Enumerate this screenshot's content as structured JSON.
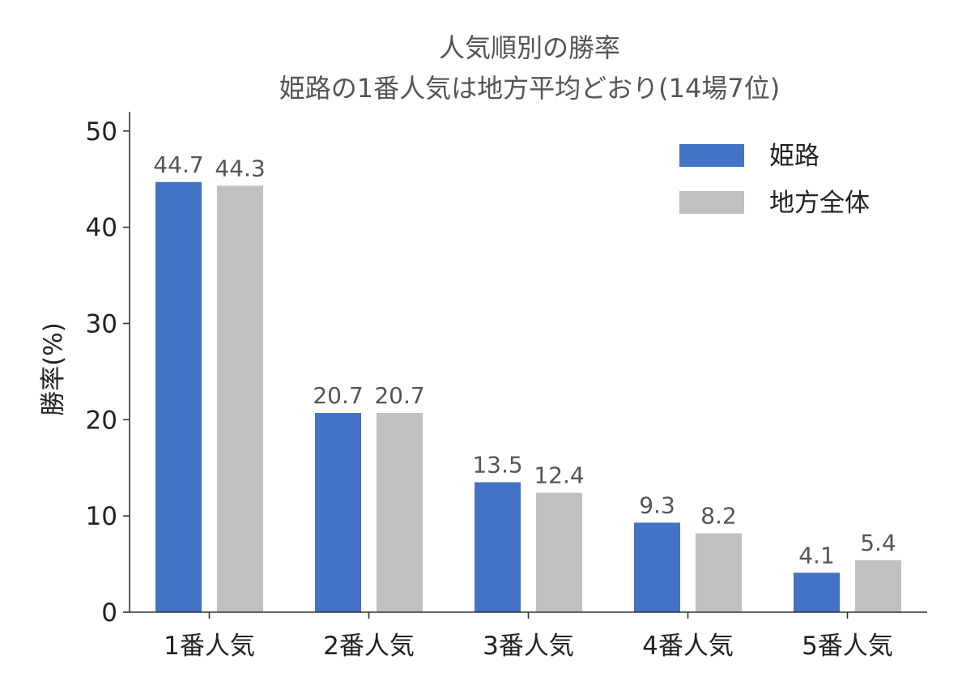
{
  "chart_data": {
    "type": "bar",
    "title": "人気順別の勝率",
    "subtitle": "姫路の1番人気は地方平均どおり(14場7位)",
    "xlabel": "",
    "ylabel": "勝率(%)",
    "categories": [
      "1番人気",
      "2番人気",
      "3番人気",
      "4番人気",
      "5番人気"
    ],
    "series": [
      {
        "name": "姫路",
        "color": "#4472c4",
        "values": [
          44.7,
          20.7,
          13.5,
          9.3,
          4.1
        ],
        "labels": [
          "44.7",
          "20.7",
          "13.5",
          "9.3",
          "4.1"
        ]
      },
      {
        "name": "地方全体",
        "color": "#c0c0c0",
        "values": [
          44.3,
          20.7,
          12.4,
          8.2,
          5.4
        ],
        "labels": [
          "44.3",
          "20.7",
          "12.4",
          "8.2",
          "5.4"
        ]
      }
    ],
    "ylim": [
      0,
      52
    ],
    "yticks": [
      0,
      10,
      20,
      30,
      40,
      50
    ],
    "ytick_labels": [
      "0",
      "10",
      "20",
      "30",
      "40",
      "50"
    ],
    "grid": false,
    "legend": "top-right"
  }
}
